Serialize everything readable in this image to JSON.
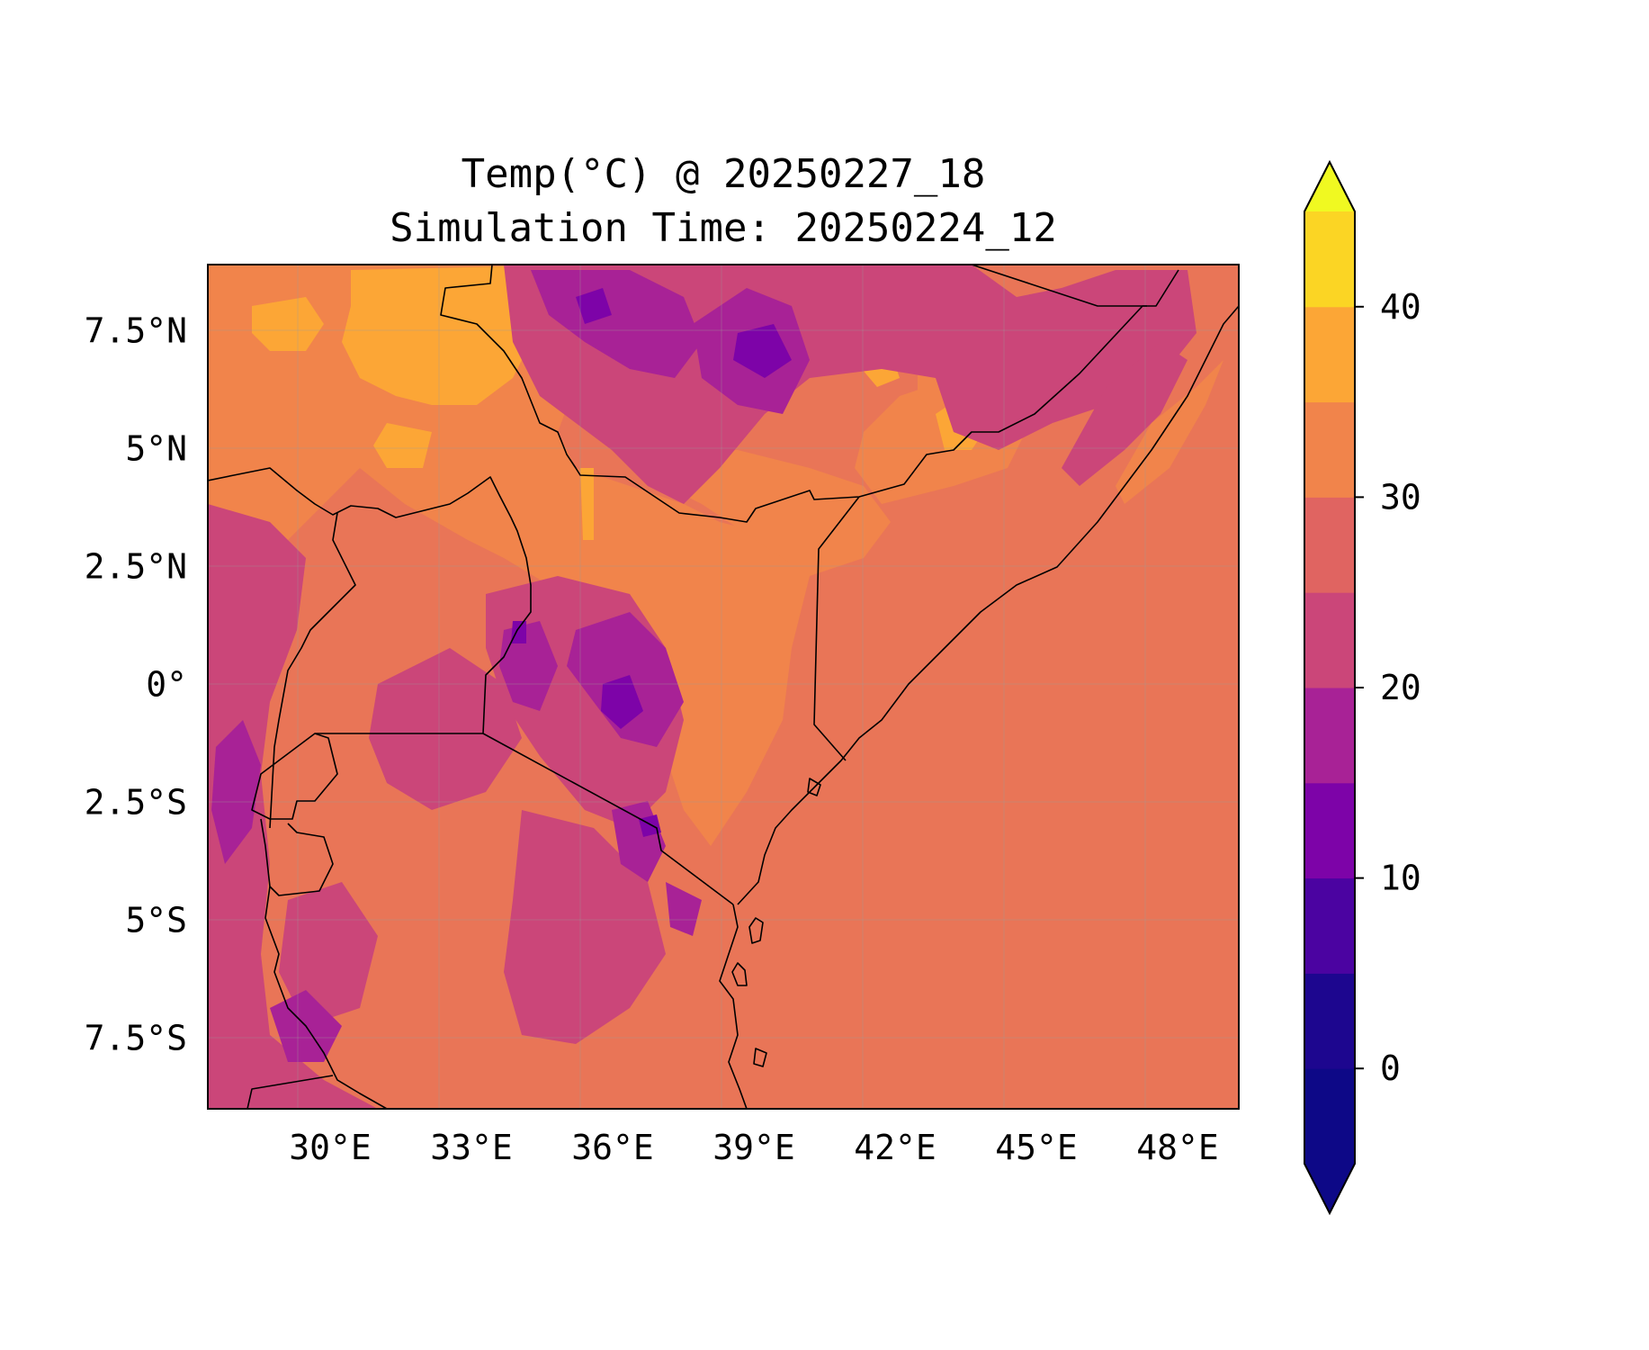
{
  "title_line1": "Temp(°C) @ 20250227_18",
  "title_line2": "Simulation Time: 20250224_12",
  "map": {
    "lon_range": [
      27.4,
      49.3
    ],
    "lat_range": [
      -9.0,
      8.9
    ],
    "x_ticks": [
      {
        "value": 30,
        "label": "30°E"
      },
      {
        "value": 33,
        "label": "33°E"
      },
      {
        "value": 36,
        "label": "36°E"
      },
      {
        "value": 39,
        "label": "39°E"
      },
      {
        "value": 42,
        "label": "42°E"
      },
      {
        "value": 45,
        "label": "45°E"
      },
      {
        "value": 48,
        "label": "48°E"
      }
    ],
    "y_ticks": [
      {
        "value": 7.5,
        "label": "7.5°N"
      },
      {
        "value": 5,
        "label": "5°N"
      },
      {
        "value": 2.5,
        "label": "2.5°N"
      },
      {
        "value": 0,
        "label": "0°"
      },
      {
        "value": -2.5,
        "label": "2.5°S"
      },
      {
        "value": -5,
        "label": "5°S"
      },
      {
        "value": -7.5,
        "label": "7.5°S"
      }
    ],
    "gridlines": true,
    "ocean_color": "#e97557"
  },
  "colorbar": {
    "colormap": "plasma",
    "orientation": "vertical",
    "placement": "right",
    "extend": "both",
    "levels": [
      -5,
      0,
      5,
      10,
      15,
      20,
      25,
      30,
      35,
      40,
      45
    ],
    "colors": [
      "#0d0887",
      "#1d068f",
      "#4b03a1",
      "#7d03a8",
      "#a82296",
      "#cb4679",
      "#e06461",
      "#f1844b",
      "#fca636",
      "#fbd524",
      "#f0f921"
    ],
    "ticks": [
      {
        "value": 0,
        "label": "0"
      },
      {
        "value": 10,
        "label": "10"
      },
      {
        "value": 20,
        "label": "20"
      },
      {
        "value": 30,
        "label": "30"
      },
      {
        "value": 40,
        "label": "40"
      }
    ]
  }
}
